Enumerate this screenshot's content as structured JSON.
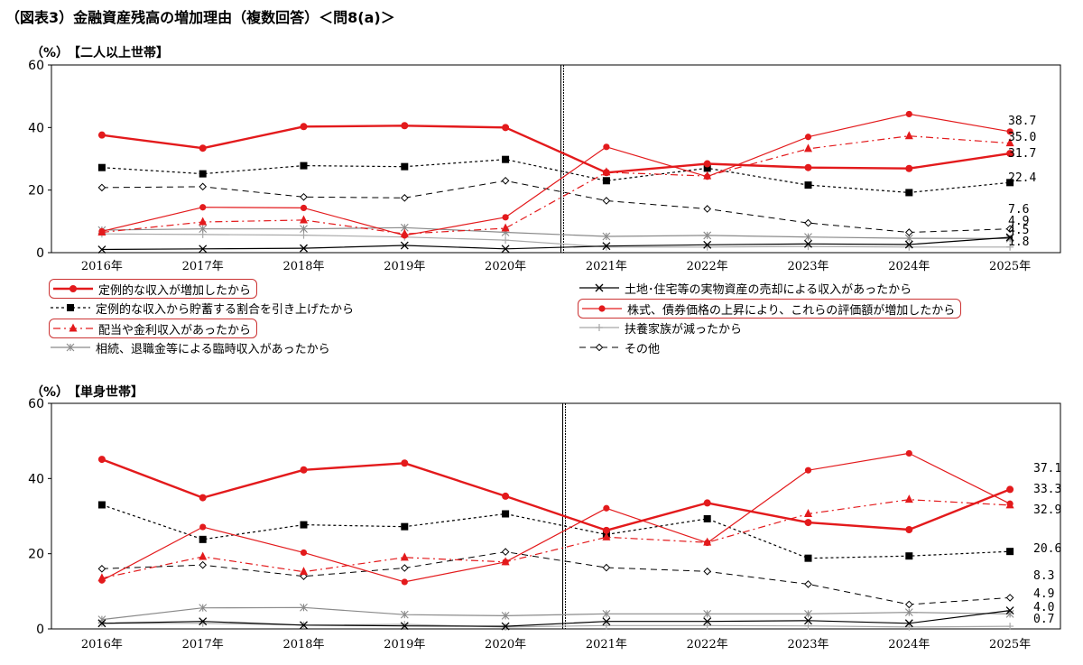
{
  "title": "（図表3）金融資産残高の増加理由（複数回答）＜問8(a)＞",
  "chart_data": [
    {
      "type": "line",
      "unit": "（%）",
      "subtitle": "【二人以上世帯】",
      "ylim": [
        0,
        60
      ],
      "yticks": [
        "0",
        "20",
        "40",
        "60"
      ],
      "categories": [
        "2016年",
        "2017年",
        "2018年",
        "2019年",
        "2020年",
        "2021年",
        "2022年",
        "2023年",
        "2024年",
        "2025年"
      ],
      "series": [
        {
          "name": "定例的な収入が増加したから",
          "values": [
            37.6,
            33.4,
            40.3,
            40.6,
            40.0,
            25.6,
            28.4,
            27.2,
            26.9,
            31.7
          ]
        },
        {
          "name": "定例的な収入から貯蓄する割合を引き上げたから",
          "values": [
            27.2,
            25.2,
            27.8,
            27.5,
            29.8,
            23.0,
            27.0,
            21.6,
            19.2,
            22.4
          ]
        },
        {
          "name": "配当や金利収入があったから",
          "values": [
            6.5,
            9.8,
            10.4,
            6.0,
            7.8,
            25.7,
            24.5,
            33.2,
            37.3,
            35.0
          ]
        },
        {
          "name": "相続、退職金等による臨時収入があったから",
          "values": [
            7.2,
            7.6,
            7.6,
            8.0,
            6.5,
            5.2,
            5.5,
            5.0,
            4.6,
            4.5
          ]
        },
        {
          "name": "土地･住宅等の実物資産の売却による収入があったから",
          "values": [
            1.0,
            1.2,
            1.4,
            2.3,
            1.2,
            2.1,
            2.5,
            2.8,
            2.6,
            4.9
          ]
        },
        {
          "name": "株式、債券価格の上昇により、これらの評価額が増加したから",
          "values": [
            6.8,
            14.5,
            14.3,
            5.5,
            11.3,
            33.8,
            24.3,
            37.0,
            44.3,
            38.7
          ]
        },
        {
          "name": "扶養家族が減ったから",
          "values": [
            6.0,
            5.8,
            5.6,
            5.0,
            4.0,
            1.8,
            1.8,
            2.0,
            1.8,
            1.8
          ]
        },
        {
          "name": "その他",
          "values": [
            20.8,
            21.1,
            17.8,
            17.5,
            23.0,
            16.6,
            14.0,
            9.5,
            6.5,
            7.6
          ]
        }
      ],
      "end_labels": [
        "38.7",
        "35.0",
        "31.7",
        "22.4",
        "7.6",
        "4.9",
        "4.5",
        "1.8"
      ]
    },
    {
      "type": "line",
      "unit": "（%）",
      "subtitle": "【単身世帯】",
      "ylim": [
        0,
        60
      ],
      "yticks": [
        "0",
        "20",
        "40",
        "60"
      ],
      "categories": [
        "2016年",
        "2017年",
        "2018年",
        "2019年",
        "2020年",
        "2021年",
        "2022年",
        "2023年",
        "2024年",
        "2025年"
      ],
      "series": [
        {
          "name": "定例的な収入が増加したから",
          "values": [
            45.1,
            34.9,
            42.3,
            44.1,
            35.3,
            26.2,
            33.5,
            28.3,
            26.4,
            37.1
          ]
        },
        {
          "name": "定例的な収入から貯蓄する割合を引き上げたから",
          "values": [
            33.0,
            23.8,
            27.7,
            27.2,
            30.6,
            25.1,
            29.3,
            18.8,
            19.4,
            20.6
          ]
        },
        {
          "name": "配当や金利収入があったから",
          "values": [
            13.5,
            19.2,
            15.2,
            19.0,
            17.8,
            24.4,
            23.0,
            30.6,
            34.4,
            32.9
          ]
        },
        {
          "name": "相続、退職金等による臨時収入があったから",
          "values": [
            2.5,
            5.6,
            5.7,
            3.8,
            3.5,
            4.0,
            4.0,
            4.0,
            4.4,
            4.0
          ]
        },
        {
          "name": "土地･住宅等の実物資産の売却による収入があったから",
          "values": [
            1.5,
            2.0,
            1.0,
            0.8,
            0.7,
            2.0,
            2.0,
            2.2,
            1.5,
            4.9
          ]
        },
        {
          "name": "株式、債券価格の上昇により、これらの評価額が増加したから",
          "values": [
            12.9,
            27.1,
            20.3,
            12.5,
            17.8,
            32.1,
            22.9,
            42.2,
            46.7,
            33.3
          ]
        },
        {
          "name": "扶養家族が減ったから",
          "values": [
            1.5,
            1.5,
            1.0,
            1.2,
            0.5,
            0.9,
            0.9,
            0.8,
            0.5,
            0.7
          ]
        },
        {
          "name": "その他",
          "values": [
            16.0,
            17.0,
            14.0,
            16.2,
            20.5,
            16.3,
            15.3,
            11.9,
            6.5,
            8.3
          ]
        }
      ],
      "end_labels": [
        "37.1",
        "33.3",
        "32.9",
        "20.6",
        "8.3",
        "4.9",
        "4.0",
        "0.7"
      ]
    }
  ],
  "legend": [
    {
      "label": "定例的な収入が増加したから",
      "color": "#e31a1c",
      "style": "solid-thick",
      "marker": "circle",
      "boxed": true
    },
    {
      "label": "土地･住宅等の実物資産の売却による収入があったから",
      "color": "#000000",
      "style": "solid",
      "marker": "x",
      "boxed": false
    },
    {
      "label": "定例的な収入から貯蓄する割合を引き上げたから",
      "color": "#000000",
      "style": "dotted",
      "marker": "square",
      "boxed": false
    },
    {
      "label": "株式、債券価格の上昇により、これらの評価額が増加したから",
      "color": "#e31a1c",
      "style": "solid",
      "marker": "circle",
      "boxed": true
    },
    {
      "label": "配当や金利収入があったから",
      "color": "#e31a1c",
      "style": "dashdot",
      "marker": "triangle",
      "boxed": true
    },
    {
      "label": "扶養家族が減ったから",
      "color": "#999999",
      "style": "solid",
      "marker": "plus",
      "boxed": false
    },
    {
      "label": "相続、退職金等による臨時収入があったから",
      "color": "#888888",
      "style": "solid",
      "marker": "asterisk",
      "boxed": false
    },
    {
      "label": "その他",
      "color": "#000000",
      "style": "dashed",
      "marker": "diamond",
      "boxed": false
    }
  ]
}
